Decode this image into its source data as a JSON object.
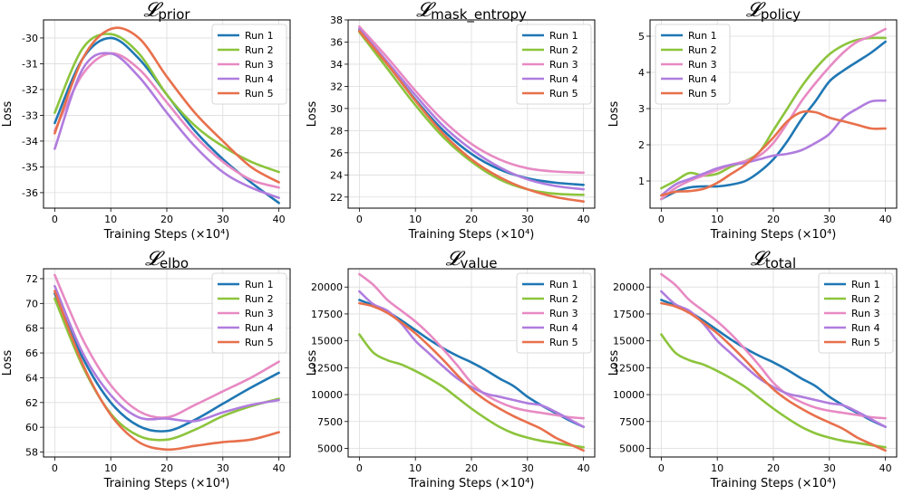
{
  "chart_data": [
    {
      "type": "line",
      "title": "𝓛",
      "title_subscript": "prior",
      "xlabel": "Training Steps (×10⁴)",
      "ylabel": "Loss",
      "xlim": [
        -2,
        42
      ],
      "ylim": [
        -36.6,
        -29.3
      ],
      "xticks": [
        "0",
        "10",
        "20",
        "30",
        "40"
      ],
      "xtick_values": [
        0,
        10,
        20,
        30,
        40
      ],
      "yticks": [
        "-36",
        "-35",
        "-34",
        "-33",
        "-32",
        "-31",
        "-30"
      ],
      "ytick_values": [
        -36,
        -35,
        -34,
        -33,
        -32,
        -31,
        -30
      ],
      "grid": true,
      "legend_position": "top-right",
      "x": [
        0,
        5,
        10,
        15,
        20,
        25,
        30,
        35,
        40
      ],
      "series": [
        {
          "name": "Run 1",
          "color": "#1f77b4",
          "values": [
            -33.3,
            -30.8,
            -30.0,
            -30.8,
            -32.2,
            -33.6,
            -34.7,
            -35.6,
            -36.4
          ]
        },
        {
          "name": "Run 2",
          "color": "#8cc43c",
          "values": [
            -32.9,
            -30.4,
            -29.85,
            -30.6,
            -32.2,
            -33.4,
            -34.2,
            -34.8,
            -35.2
          ]
        },
        {
          "name": "Run 3",
          "color": "#e78ac3",
          "values": [
            -33.6,
            -31.4,
            -30.6,
            -31.2,
            -32.5,
            -33.8,
            -34.8,
            -35.5,
            -35.8
          ]
        },
        {
          "name": "Run 4",
          "color": "#b07cde",
          "values": [
            -34.3,
            -31.2,
            -30.6,
            -31.5,
            -32.9,
            -34.2,
            -35.2,
            -35.8,
            -36.2
          ]
        },
        {
          "name": "Run 5",
          "color": "#e8704c",
          "values": [
            -33.7,
            -30.8,
            -29.65,
            -30.0,
            -31.5,
            -32.9,
            -34.0,
            -35.0,
            -35.6
          ]
        }
      ]
    },
    {
      "type": "line",
      "title": "𝓛",
      "title_subscript": "mask_entropy",
      "xlabel": "Training Steps (×10⁴)",
      "ylabel": "Loss",
      "xlim": [
        -2,
        42
      ],
      "ylim": [
        21.0,
        38.0
      ],
      "xticks": [
        "0",
        "10",
        "20",
        "30",
        "40"
      ],
      "xtick_values": [
        0,
        10,
        20,
        30,
        40
      ],
      "yticks": [
        "22",
        "24",
        "26",
        "28",
        "30",
        "32",
        "34",
        "36",
        "38"
      ],
      "ytick_values": [
        22,
        24,
        26,
        28,
        30,
        32,
        34,
        36,
        38
      ],
      "grid": true,
      "legend_position": "top-right",
      "x": [
        0,
        5,
        10,
        15,
        20,
        25,
        30,
        35,
        40
      ],
      "series": [
        {
          "name": "Run 1",
          "color": "#1f77b4",
          "values": [
            37.1,
            34.0,
            30.8,
            28.0,
            25.9,
            24.5,
            23.7,
            23.3,
            23.1
          ]
        },
        {
          "name": "Run 2",
          "color": "#8cc43c",
          "values": [
            36.9,
            33.6,
            30.3,
            27.4,
            25.2,
            23.6,
            22.7,
            22.3,
            22.2
          ]
        },
        {
          "name": "Run 3",
          "color": "#e78ac3",
          "values": [
            37.4,
            34.6,
            31.6,
            28.9,
            26.8,
            25.4,
            24.6,
            24.3,
            24.2
          ]
        },
        {
          "name": "Run 4",
          "color": "#b07cde",
          "values": [
            37.2,
            34.2,
            31.2,
            28.4,
            26.3,
            24.7,
            23.6,
            23.0,
            22.7
          ]
        },
        {
          "name": "Run 5",
          "color": "#e8704c",
          "values": [
            37.0,
            34.0,
            30.7,
            27.7,
            25.4,
            23.8,
            22.7,
            22.0,
            21.6
          ]
        }
      ]
    },
    {
      "type": "line",
      "title": "𝓛",
      "title_subscript": "policy",
      "xlabel": "Training Steps (×10⁴)",
      "ylabel": "Loss",
      "xlim": [
        -2,
        42
      ],
      "ylim": [
        0.25,
        5.45
      ],
      "xticks": [
        "0",
        "10",
        "20",
        "30",
        "40"
      ],
      "xtick_values": [
        0,
        10,
        20,
        30,
        40
      ],
      "yticks": [
        "1",
        "2",
        "3",
        "4",
        "5"
      ],
      "ytick_values": [
        1,
        2,
        3,
        4,
        5
      ],
      "grid": true,
      "legend_position": "top-left",
      "x": [
        0,
        2.5,
        5,
        7.5,
        10,
        12.5,
        15,
        17.5,
        20,
        22.5,
        25,
        27.5,
        30,
        32.5,
        35,
        37.5,
        40
      ],
      "series": [
        {
          "name": "Run 1",
          "color": "#1f77b4",
          "values": [
            0.5,
            0.7,
            0.82,
            0.85,
            0.85,
            0.9,
            1.0,
            1.25,
            1.6,
            2.1,
            2.7,
            3.2,
            3.75,
            4.05,
            4.3,
            4.55,
            4.85
          ]
        },
        {
          "name": "Run 2",
          "color": "#8cc43c",
          "values": [
            0.8,
            1.0,
            1.22,
            1.15,
            1.2,
            1.4,
            1.55,
            1.8,
            2.4,
            3.0,
            3.6,
            4.1,
            4.5,
            4.75,
            4.9,
            4.95,
            4.95
          ]
        },
        {
          "name": "Run 3",
          "color": "#e78ac3",
          "values": [
            0.5,
            0.8,
            1.0,
            1.15,
            1.3,
            1.45,
            1.55,
            1.7,
            2.05,
            2.6,
            3.2,
            3.7,
            4.15,
            4.55,
            4.85,
            5.0,
            5.2
          ]
        },
        {
          "name": "Run 4",
          "color": "#b07cde",
          "values": [
            0.6,
            0.9,
            1.05,
            1.2,
            1.35,
            1.45,
            1.5,
            1.6,
            1.7,
            1.75,
            1.85,
            2.05,
            2.3,
            2.75,
            3.0,
            3.2,
            3.22
          ]
        },
        {
          "name": "Run 5",
          "color": "#e8704c",
          "values": [
            0.6,
            0.7,
            0.72,
            0.78,
            0.95,
            1.2,
            1.45,
            1.8,
            2.2,
            2.65,
            2.9,
            2.9,
            2.75,
            2.65,
            2.55,
            2.45,
            2.45
          ]
        }
      ]
    },
    {
      "type": "line",
      "title": "𝓛",
      "title_subscript": "elbo",
      "xlabel": "Training Steps (×10⁴)",
      "ylabel": "Loss",
      "xlim": [
        -2,
        42
      ],
      "ylim": [
        57.6,
        72.8
      ],
      "xticks": [
        "0",
        "10",
        "20",
        "30",
        "40"
      ],
      "xtick_values": [
        0,
        10,
        20,
        30,
        40
      ],
      "yticks": [
        "58",
        "60",
        "62",
        "64",
        "66",
        "68",
        "70",
        "72"
      ],
      "ytick_values": [
        58,
        60,
        62,
        64,
        66,
        68,
        70,
        72
      ],
      "grid": true,
      "legend_position": "top-right",
      "x": [
        0,
        5,
        10,
        15,
        20,
        25,
        30,
        35,
        40
      ],
      "series": [
        {
          "name": "Run 1",
          "color": "#1f77b4",
          "values": [
            70.8,
            65.6,
            62.0,
            60.1,
            59.7,
            60.6,
            61.9,
            63.2,
            64.4
          ]
        },
        {
          "name": "Run 2",
          "color": "#8cc43c",
          "values": [
            70.4,
            64.9,
            61.1,
            59.3,
            59.0,
            59.8,
            60.9,
            61.7,
            62.3
          ]
        },
        {
          "name": "Run 3",
          "color": "#e78ac3",
          "values": [
            72.3,
            67.1,
            63.4,
            61.3,
            60.8,
            61.8,
            62.9,
            64.0,
            65.3
          ]
        },
        {
          "name": "Run 4",
          "color": "#b07cde",
          "values": [
            71.4,
            66.0,
            62.6,
            60.8,
            60.7,
            60.5,
            61.2,
            61.8,
            62.2
          ]
        },
        {
          "name": "Run 5",
          "color": "#e8704c",
          "values": [
            71.0,
            65.1,
            61.0,
            58.8,
            58.2,
            58.5,
            58.8,
            59.0,
            59.6
          ]
        }
      ]
    },
    {
      "type": "line",
      "title": "𝓛",
      "title_subscript": "value",
      "xlabel": "Training Steps (×10⁴)",
      "ylabel": "Loss",
      "xlim": [
        -2,
        42
      ],
      "ylim": [
        4200,
        21700
      ],
      "xticks": [
        "0",
        "10",
        "20",
        "30",
        "40"
      ],
      "xtick_values": [
        0,
        10,
        20,
        30,
        40
      ],
      "yticks": [
        "5000",
        "7500",
        "10000",
        "12500",
        "15000",
        "17500",
        "20000"
      ],
      "ytick_values": [
        5000,
        7500,
        10000,
        12500,
        15000,
        17500,
        20000
      ],
      "grid": true,
      "legend_position": "top-right",
      "x": [
        0,
        2.5,
        5,
        7.5,
        10,
        12.5,
        15,
        17.5,
        20,
        22.5,
        25,
        27.5,
        30,
        32.5,
        35,
        37.5,
        40
      ],
      "series": [
        {
          "name": "Run 1",
          "color": "#1f77b4",
          "values": [
            18800,
            18300,
            17700,
            16900,
            16000,
            15100,
            14300,
            13600,
            13000,
            12300,
            11500,
            10800,
            9800,
            9000,
            8300,
            7600,
            7000
          ]
        },
        {
          "name": "Run 2",
          "color": "#8cc43c",
          "values": [
            15600,
            13900,
            13200,
            12800,
            12200,
            11500,
            10700,
            9700,
            8700,
            7800,
            7000,
            6400,
            6000,
            5700,
            5500,
            5300,
            5100
          ]
        },
        {
          "name": "Run 3",
          "color": "#e78ac3",
          "values": [
            21200,
            20200,
            18800,
            17800,
            16800,
            15600,
            14200,
            12700,
            11100,
            10000,
            9300,
            8800,
            8500,
            8300,
            8100,
            7900,
            7800
          ]
        },
        {
          "name": "Run 4",
          "color": "#b07cde",
          "values": [
            19600,
            18400,
            17800,
            16600,
            15000,
            13800,
            12600,
            11500,
            10700,
            10100,
            9800,
            9500,
            9200,
            9000,
            8400,
            7700,
            7000
          ]
        },
        {
          "name": "Run 5",
          "color": "#e8704c",
          "values": [
            18500,
            18200,
            17600,
            16700,
            15700,
            14500,
            13200,
            11800,
            10500,
            9500,
            8700,
            8000,
            7400,
            6800,
            6000,
            5400,
            4800
          ]
        }
      ]
    },
    {
      "type": "line",
      "title": "𝓛",
      "title_subscript": "total",
      "xlabel": "Training Steps (×10⁴)",
      "ylabel": "Loss",
      "xlim": [
        -2,
        42
      ],
      "ylim": [
        4200,
        21700
      ],
      "xticks": [
        "0",
        "10",
        "20",
        "30",
        "40"
      ],
      "xtick_values": [
        0,
        10,
        20,
        30,
        40
      ],
      "yticks": [
        "5000",
        "7500",
        "10000",
        "12500",
        "15000",
        "17500",
        "20000"
      ],
      "ytick_values": [
        5000,
        7500,
        10000,
        12500,
        15000,
        17500,
        20000
      ],
      "grid": true,
      "legend_position": "top-right",
      "x": [
        0,
        2.5,
        5,
        7.5,
        10,
        12.5,
        15,
        17.5,
        20,
        22.5,
        25,
        27.5,
        30,
        32.5,
        35,
        37.5,
        40
      ],
      "series": [
        {
          "name": "Run 1",
          "color": "#1f77b4",
          "values": [
            18800,
            18300,
            17700,
            16900,
            16000,
            15100,
            14300,
            13600,
            13000,
            12300,
            11500,
            10800,
            9800,
            9000,
            8300,
            7600,
            7000
          ]
        },
        {
          "name": "Run 2",
          "color": "#8cc43c",
          "values": [
            15600,
            13900,
            13200,
            12800,
            12200,
            11500,
            10700,
            9700,
            8700,
            7800,
            7000,
            6400,
            6000,
            5700,
            5500,
            5300,
            5100
          ]
        },
        {
          "name": "Run 3",
          "color": "#e78ac3",
          "values": [
            21200,
            20200,
            18800,
            17800,
            16800,
            15600,
            14200,
            12700,
            11100,
            10000,
            9300,
            8800,
            8500,
            8300,
            8100,
            7900,
            7800
          ]
        },
        {
          "name": "Run 4",
          "color": "#b07cde",
          "values": [
            19600,
            18400,
            17800,
            16600,
            15000,
            13800,
            12600,
            11500,
            10700,
            10100,
            9800,
            9500,
            9200,
            9000,
            8400,
            7700,
            7000
          ]
        },
        {
          "name": "Run 5",
          "color": "#e8704c",
          "values": [
            18500,
            18200,
            17600,
            16700,
            15700,
            14500,
            13200,
            11800,
            10500,
            9500,
            8700,
            8000,
            7400,
            6800,
            6000,
            5400,
            4800
          ]
        }
      ]
    }
  ]
}
